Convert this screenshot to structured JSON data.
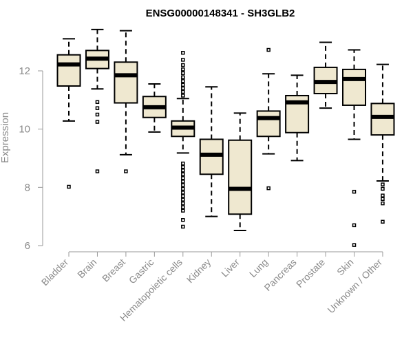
{
  "chart_data": {
    "type": "boxplot",
    "title": "ENSG00000148341 - SH3GLB2",
    "xlabel": "",
    "ylabel": "Expression",
    "ylim": [
      5.9,
      13.7
    ],
    "yticks": [
      6,
      8,
      10,
      12
    ],
    "box_fill": "#efe8d0",
    "categories": [
      "Bladder",
      "Brain",
      "Breast",
      "Gastric",
      "Hematopoietic cells",
      "Kidney",
      "Liver",
      "Lung",
      "Pancreas",
      "Prostate",
      "Skin",
      "Unknown / Other"
    ],
    "boxes": [
      {
        "name": "Bladder",
        "whisker_low": 10.28,
        "q1": 11.48,
        "median": 12.22,
        "q3": 12.55,
        "whisker_high": 13.1,
        "outliers": [
          8.02
        ]
      },
      {
        "name": "Brain",
        "whisker_low": 11.38,
        "q1": 12.08,
        "median": 12.42,
        "q3": 12.7,
        "whisker_high": 13.42,
        "outliers": [
          10.93,
          10.72,
          10.5,
          10.25,
          8.55
        ]
      },
      {
        "name": "Breast",
        "whisker_low": 9.12,
        "q1": 10.9,
        "median": 11.85,
        "q3": 12.3,
        "whisker_high": 13.38,
        "outliers": [
          8.55
        ]
      },
      {
        "name": "Gastric",
        "whisker_low": 9.9,
        "q1": 10.4,
        "median": 10.75,
        "q3": 11.12,
        "whisker_high": 11.55,
        "outliers": []
      },
      {
        "name": "Hematopoietic cells",
        "whisker_low": 9.18,
        "q1": 9.75,
        "median": 10.05,
        "q3": 10.28,
        "whisker_high": 11.05,
        "outliers": [
          12.62,
          12.38,
          12.2,
          12.05,
          11.92,
          11.78,
          11.65,
          11.52,
          11.4,
          11.28,
          11.15,
          8.82,
          8.7,
          8.58,
          8.45,
          8.32,
          8.2,
          8.08,
          7.95,
          7.82,
          7.7,
          7.58,
          7.45,
          7.32,
          7.2,
          6.88,
          6.65
        ]
      },
      {
        "name": "Kidney",
        "whisker_low": 7.0,
        "q1": 8.45,
        "median": 9.12,
        "q3": 9.65,
        "whisker_high": 11.45,
        "outliers": []
      },
      {
        "name": "Liver",
        "whisker_low": 6.52,
        "q1": 7.08,
        "median": 7.95,
        "q3": 9.62,
        "whisker_high": 10.55,
        "outliers": []
      },
      {
        "name": "Lung",
        "whisker_low": 9.15,
        "q1": 9.75,
        "median": 10.38,
        "q3": 10.62,
        "whisker_high": 11.9,
        "outliers": [
          12.72,
          7.97
        ]
      },
      {
        "name": "Pancreas",
        "whisker_low": 8.92,
        "q1": 9.88,
        "median": 10.92,
        "q3": 11.15,
        "whisker_high": 11.85,
        "outliers": []
      },
      {
        "name": "Prostate",
        "whisker_low": 10.72,
        "q1": 11.22,
        "median": 11.62,
        "q3": 12.12,
        "whisker_high": 12.98,
        "outliers": []
      },
      {
        "name": "Skin",
        "whisker_low": 9.65,
        "q1": 10.82,
        "median": 11.72,
        "q3": 12.05,
        "whisker_high": 12.72,
        "outliers": [
          7.85,
          6.7,
          6.02
        ]
      },
      {
        "name": "Unknown / Other",
        "whisker_low": 8.22,
        "q1": 9.8,
        "median": 10.42,
        "q3": 10.88,
        "whisker_high": 12.22,
        "outliers": [
          8.1,
          7.95,
          7.72,
          7.6,
          7.45,
          6.82
        ]
      }
    ]
  }
}
